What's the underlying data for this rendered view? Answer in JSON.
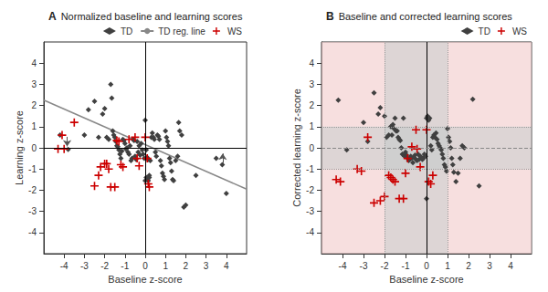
{
  "chart_data": [
    {
      "type": "scatter",
      "panel_label": "A",
      "title": "Normalized baseline and learning scores",
      "xlabel": "Baseline z-score",
      "ylabel": "Learning z-score",
      "xlim": [
        -5,
        5
      ],
      "ylim": [
        -5,
        5
      ],
      "xticks": [
        -4,
        -3,
        -2,
        -1,
        0,
        1,
        2,
        3,
        4
      ],
      "yticks": [
        -4,
        -3,
        -2,
        -1,
        0,
        1,
        2,
        3,
        4
      ],
      "grid": false,
      "legend": "upper right",
      "series": [
        {
          "name": "TD",
          "type": "scatter",
          "color": "#404040",
          "marker": "diamond",
          "values": [
            [
              -4.2,
              0.6
            ],
            [
              -3.8,
              -0.08
            ],
            [
              -3.0,
              0.6
            ],
            [
              -2.8,
              1.8
            ],
            [
              -2.5,
              2.2
            ],
            [
              -2.3,
              0.5
            ],
            [
              -2.1,
              1.6
            ],
            [
              -2.0,
              1.85
            ],
            [
              -1.9,
              0.5
            ],
            [
              -1.8,
              0.4
            ],
            [
              -1.7,
              3.0
            ],
            [
              -1.65,
              2.35
            ],
            [
              -1.6,
              0.8
            ],
            [
              -1.55,
              0.6
            ],
            [
              -1.5,
              0.5
            ],
            [
              -1.45,
              0.3
            ],
            [
              -1.4,
              0.1
            ],
            [
              -1.35,
              0.05
            ],
            [
              -1.3,
              -0.1
            ],
            [
              -1.25,
              -0.3
            ],
            [
              -1.2,
              -0.5
            ],
            [
              -1.15,
              -0.15
            ],
            [
              -1.1,
              0.4
            ],
            [
              -1.05,
              0.35
            ],
            [
              -1.0,
              0.2
            ],
            [
              -0.95,
              -0.05
            ],
            [
              -0.9,
              0.0
            ],
            [
              -0.85,
              -0.2
            ],
            [
              -0.8,
              -0.3
            ],
            [
              -0.75,
              0.1
            ],
            [
              -0.7,
              -0.6
            ],
            [
              -0.65,
              -0.5
            ],
            [
              -0.6,
              0.4
            ],
            [
              -0.55,
              0.35
            ],
            [
              -0.5,
              -0.4
            ],
            [
              -0.45,
              -0.55
            ],
            [
              -0.4,
              0.3
            ],
            [
              -0.35,
              -0.2
            ],
            [
              -0.3,
              0.1
            ],
            [
              -0.25,
              -0.35
            ],
            [
              -0.2,
              0.2
            ],
            [
              -0.15,
              -0.1
            ],
            [
              -0.1,
              -0.3
            ],
            [
              -0.05,
              -0.5
            ],
            [
              0.0,
              1.3
            ],
            [
              0.05,
              -0.1
            ],
            [
              0.1,
              -0.45
            ],
            [
              0.15,
              -0.55
            ],
            [
              0.2,
              -1.3
            ],
            [
              0.25,
              -0.6
            ],
            [
              0.3,
              0.5
            ],
            [
              0.35,
              0.7
            ],
            [
              0.4,
              0.5
            ],
            [
              0.45,
              0.4
            ],
            [
              0.5,
              -0.2
            ],
            [
              0.55,
              -0.4
            ],
            [
              0.6,
              0.6
            ],
            [
              0.65,
              0.55
            ],
            [
              0.7,
              0.4
            ],
            [
              0.75,
              -0.6
            ],
            [
              0.8,
              -0.85
            ],
            [
              0.85,
              -1.2
            ],
            [
              0.9,
              -1.35
            ],
            [
              0.95,
              -1.5
            ],
            [
              1.0,
              0.8
            ],
            [
              1.05,
              0.5
            ],
            [
              1.1,
              0.3
            ],
            [
              1.15,
              0.1
            ],
            [
              1.2,
              -0.5
            ],
            [
              1.25,
              -0.7
            ],
            [
              1.3,
              -1.1
            ],
            [
              1.35,
              -1.5
            ],
            [
              1.4,
              -1.55
            ],
            [
              1.5,
              -0.6
            ],
            [
              1.6,
              -0.4
            ],
            [
              1.65,
              1.2
            ],
            [
              1.7,
              0.8
            ],
            [
              1.8,
              0.6
            ],
            [
              1.9,
              -2.8
            ],
            [
              2.0,
              -2.7
            ],
            [
              2.5,
              -1.3
            ],
            [
              3.5,
              -0.5
            ],
            [
              3.8,
              -0.8
            ],
            [
              4.0,
              -2.15
            ],
            [
              0.0,
              -1.55
            ],
            [
              0.05,
              -1.4
            ],
            [
              0.1,
              -1.5
            ],
            [
              0.15,
              -1.55
            ],
            [
              0.2,
              -1.4
            ]
          ]
        },
        {
          "name": "TD reg. line",
          "type": "line",
          "color": "#888888",
          "line_style": "solid",
          "values": [
            [
              -5,
              2.25
            ],
            [
              5,
              -1.95
            ]
          ]
        },
        {
          "name": "WS",
          "type": "scatter",
          "color": "#cc0000",
          "marker": "plus",
          "values": [
            [
              -4.3,
              -0.05
            ],
            [
              -4.1,
              0.6
            ],
            [
              -4.0,
              -0.05
            ],
            [
              -3.5,
              1.2
            ],
            [
              -2.5,
              -1.8
            ],
            [
              -2.3,
              -1.3
            ],
            [
              -2.2,
              -0.9
            ],
            [
              -2.0,
              -0.75
            ],
            [
              -1.9,
              -0.75
            ],
            [
              -1.8,
              -1.0
            ],
            [
              -1.7,
              -1.85
            ],
            [
              -1.5,
              -1.85
            ],
            [
              -1.4,
              0.35
            ],
            [
              -1.3,
              0.3
            ],
            [
              -1.2,
              -0.8
            ],
            [
              -1.1,
              -0.9
            ],
            [
              -0.8,
              0.4
            ],
            [
              -0.5,
              0.5
            ],
            [
              -0.4,
              -0.5
            ],
            [
              -0.3,
              -0.85
            ],
            [
              0.0,
              0.5
            ],
            [
              0.1,
              -0.5
            ],
            [
              0.15,
              -1.7
            ],
            [
              0.2,
              -1.85
            ]
          ]
        }
      ],
      "reference_lines": [
        {
          "axis": "x",
          "value": 0,
          "color": "#000000",
          "line_style": "solid"
        },
        {
          "axis": "y",
          "value": 0,
          "color": "#000000",
          "line_style": "solid"
        }
      ],
      "arrows": [
        {
          "from": [
            -3.85,
            0.52
          ],
          "to": [
            -3.85,
            0.07
          ],
          "color": "#555555"
        },
        {
          "from": [
            3.82,
            -0.72
          ],
          "to": [
            3.82,
            -0.27
          ],
          "color": "#555555"
        }
      ]
    },
    {
      "type": "scatter",
      "panel_label": "B",
      "title": "Baseline and corrected learning scores",
      "xlabel": "Baseline z-score",
      "ylabel": "Corrected learning z-score",
      "xlim": [
        -5,
        5
      ],
      "ylim": [
        -5,
        5
      ],
      "xticks": [
        -4,
        -3,
        -2,
        -1,
        0,
        1,
        2,
        3,
        4
      ],
      "yticks": [
        -4,
        -3,
        -2,
        -1,
        0,
        1,
        2,
        3,
        4
      ],
      "grid": false,
      "legend": "upper right",
      "series": [
        {
          "name": "TD",
          "type": "scatter",
          "color": "#404040",
          "marker": "diamond",
          "values": [
            [
              -4.2,
              2.25
            ],
            [
              -3.8,
              -0.1
            ],
            [
              -3.0,
              1.2
            ],
            [
              -2.8,
              0.3
            ],
            [
              -2.5,
              2.6
            ],
            [
              -2.3,
              1.6
            ],
            [
              -2.2,
              1.9
            ],
            [
              -2.0,
              1.5
            ],
            [
              -1.9,
              0.5
            ],
            [
              -1.8,
              0.6
            ],
            [
              -1.7,
              1.0
            ],
            [
              -1.65,
              0.6
            ],
            [
              -1.6,
              1.1
            ],
            [
              -1.55,
              0.9
            ],
            [
              -1.5,
              1.4
            ],
            [
              -1.45,
              0.8
            ],
            [
              -1.4,
              0.8
            ],
            [
              -1.35,
              0.5
            ],
            [
              -1.3,
              0.4
            ],
            [
              -1.25,
              0.35
            ],
            [
              -1.2,
              0.0
            ],
            [
              -1.15,
              -0.3
            ],
            [
              -1.1,
              1.4
            ],
            [
              -1.05,
              -0.4
            ],
            [
              -1.0,
              -0.2
            ],
            [
              -0.95,
              -0.35
            ],
            [
              -0.9,
              -0.5
            ],
            [
              -0.85,
              -0.6
            ],
            [
              -0.8,
              -0.55
            ],
            [
              -0.75,
              -0.4
            ],
            [
              -0.7,
              -0.5
            ],
            [
              -0.65,
              -0.7
            ],
            [
              -0.6,
              -0.45
            ],
            [
              -0.55,
              -0.35
            ],
            [
              -0.5,
              -0.55
            ],
            [
              -0.45,
              -0.6
            ],
            [
              -0.4,
              -0.3
            ],
            [
              -0.35,
              -0.55
            ],
            [
              -0.3,
              -0.4
            ],
            [
              -0.25,
              -0.45
            ],
            [
              -0.2,
              -0.55
            ],
            [
              -0.15,
              -0.5
            ],
            [
              -0.1,
              -0.3
            ],
            [
              -0.05,
              -0.4
            ],
            [
              0.0,
              1.4
            ],
            [
              0.05,
              1.5
            ],
            [
              0.1,
              1.3
            ],
            [
              0.15,
              1.4
            ],
            [
              0.2,
              0.1
            ],
            [
              0.25,
              -0.1
            ],
            [
              0.3,
              0.5
            ],
            [
              0.35,
              0.6
            ],
            [
              0.4,
              0.5
            ],
            [
              0.45,
              0.7
            ],
            [
              0.5,
              0.4
            ],
            [
              0.55,
              0.2
            ],
            [
              0.6,
              0.1
            ],
            [
              0.65,
              0.0
            ],
            [
              0.7,
              -0.1
            ],
            [
              0.75,
              -0.3
            ],
            [
              0.8,
              -0.5
            ],
            [
              0.85,
              -0.8
            ],
            [
              0.9,
              -0.9
            ],
            [
              0.95,
              -1.1
            ],
            [
              1.0,
              0.9
            ],
            [
              1.05,
              0.5
            ],
            [
              1.1,
              0.3
            ],
            [
              1.15,
              0.0
            ],
            [
              1.2,
              -0.5
            ],
            [
              1.25,
              -0.8
            ],
            [
              1.3,
              -1.15
            ],
            [
              1.4,
              -1.6
            ],
            [
              1.5,
              -1.2
            ],
            [
              1.6,
              -0.5
            ],
            [
              1.7,
              0.1
            ],
            [
              1.8,
              0.0
            ],
            [
              2.2,
              2.3
            ],
            [
              2.5,
              -1.8
            ],
            [
              0.0,
              -2.4
            ]
          ]
        },
        {
          "name": "WS",
          "type": "scatter",
          "color": "#cc0000",
          "marker": "plus",
          "values": [
            [
              -4.3,
              -1.5
            ],
            [
              -4.1,
              -1.6
            ],
            [
              -3.3,
              -1.0
            ],
            [
              -3.1,
              -1.1
            ],
            [
              -2.8,
              0.5
            ],
            [
              -2.5,
              -2.6
            ],
            [
              -2.2,
              -2.5
            ],
            [
              -2.0,
              -2.3
            ],
            [
              -1.8,
              -1.3
            ],
            [
              -1.7,
              -1.4
            ],
            [
              -1.6,
              -1.5
            ],
            [
              -1.5,
              -1.6
            ],
            [
              -1.3,
              -2.4
            ],
            [
              -1.1,
              -2.4
            ],
            [
              -1.0,
              -1.2
            ],
            [
              -0.9,
              -0.5
            ],
            [
              -0.7,
              0.05
            ],
            [
              -0.5,
              0.85
            ],
            [
              -0.45,
              -0.05
            ],
            [
              -0.3,
              -0.9
            ],
            [
              0.0,
              0.85
            ],
            [
              0.1,
              -1.6
            ],
            [
              0.2,
              -1.7
            ],
            [
              0.3,
              -1.3
            ]
          ]
        }
      ],
      "shading": {
        "x_band": [
          -2,
          1
        ],
        "y_band": [
          -1,
          1
        ],
        "band_color": "#bbbbbb",
        "outside_color": "#f2c8c8"
      },
      "reference_lines": [
        {
          "axis": "x",
          "value": -2,
          "color": "#999999",
          "line_style": "dotted"
        },
        {
          "axis": "x",
          "value": 1,
          "color": "#999999",
          "line_style": "dotted"
        },
        {
          "axis": "y",
          "value": -1,
          "color": "#999999",
          "line_style": "dotted"
        },
        {
          "axis": "y",
          "value": 1,
          "color": "#999999",
          "line_style": "dotted"
        },
        {
          "axis": "x",
          "value": 0,
          "color": "#000000",
          "line_style": "solid"
        },
        {
          "axis": "y",
          "value": 0,
          "color": "#888888",
          "line_style": "dashed"
        }
      ]
    }
  ]
}
